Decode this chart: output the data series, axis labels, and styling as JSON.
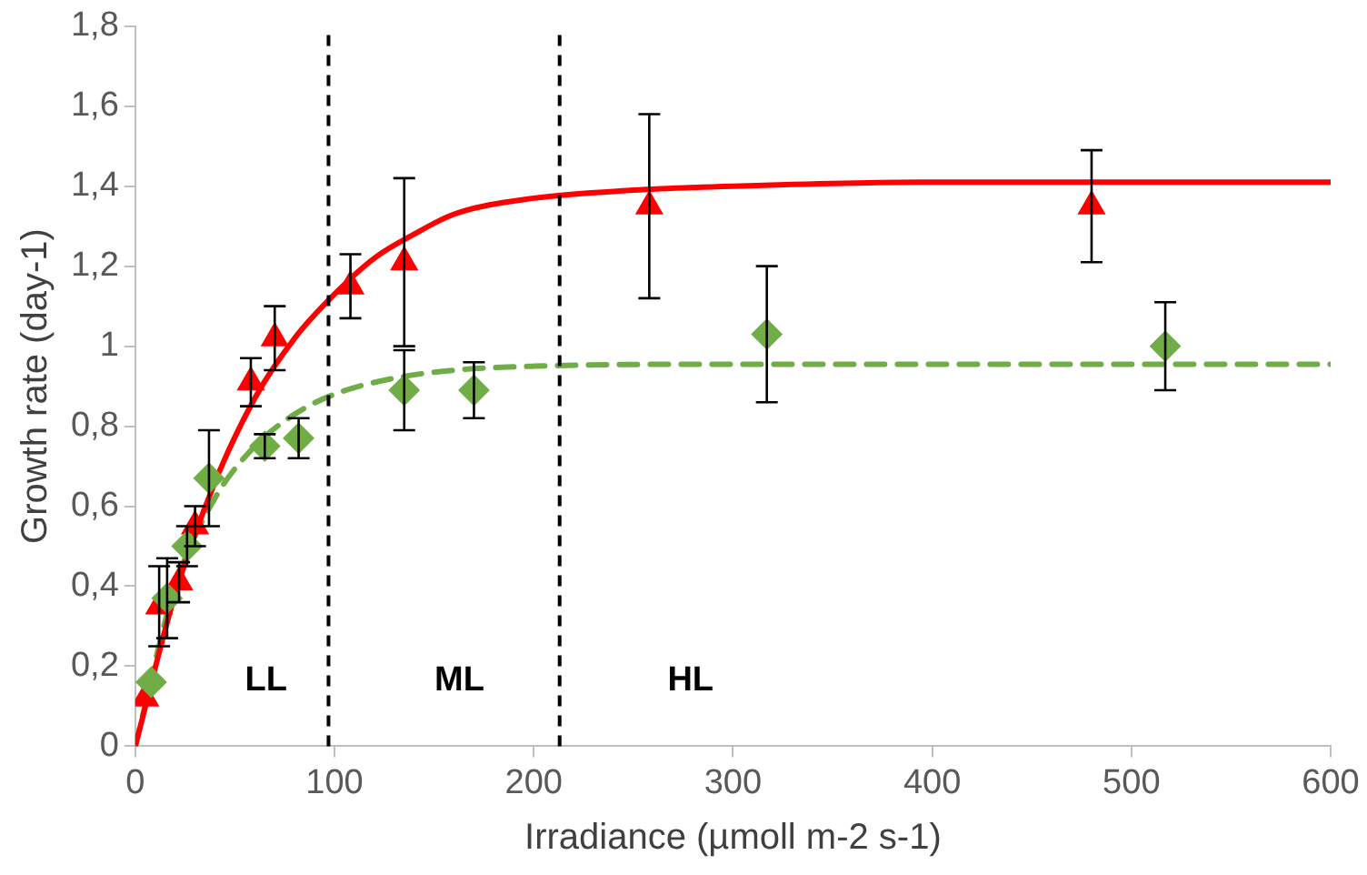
{
  "chart_data": {
    "type": "scatter",
    "xlabel": "Irradiance (µmoll m-2 s-1)",
    "ylabel": "Growth rate (day-1)",
    "xlim": [
      0,
      600
    ],
    "xticks": [
      0,
      100,
      200,
      300,
      400,
      500,
      600
    ],
    "ylim": [
      0,
      1.8
    ],
    "yticks": [
      0,
      {
        "value": 0.2,
        "label": "0,2"
      },
      {
        "value": 0.4,
        "label": "0,4"
      },
      {
        "value": 0.6,
        "label": "0,6"
      },
      {
        "value": 0.8,
        "label": "0,8"
      },
      1,
      {
        "value": 1.2,
        "label": "1,2"
      },
      {
        "value": 1.4,
        "label": "1,4"
      },
      {
        "value": 1.6,
        "label": "1,6"
      },
      {
        "value": 1.8,
        "label": "1,8"
      }
    ],
    "grid": false,
    "legend": false,
    "series": [
      {
        "type": "line",
        "color": "#ff0000",
        "line_style": "solid",
        "marker": "none",
        "x": [
          0,
          20,
          40,
          60,
          80,
          100,
          120,
          140,
          160,
          200,
          250,
          300,
          400,
          600
        ],
        "values": [
          0,
          0.38,
          0.66,
          0.87,
          1.02,
          1.13,
          1.22,
          1.28,
          1.33,
          1.37,
          1.39,
          1.4,
          1.41,
          1.41
        ]
      },
      {
        "type": "line",
        "color": "#70ad47",
        "line_style": "dashed",
        "marker": "none",
        "x": [
          0,
          20,
          40,
          60,
          80,
          100,
          130,
          160,
          200,
          300,
          600
        ],
        "values": [
          0,
          0.4,
          0.62,
          0.75,
          0.83,
          0.88,
          0.92,
          0.94,
          0.95,
          0.955,
          0.955
        ]
      },
      {
        "type": "scatter",
        "color": "#ff0000",
        "marker": "triangle",
        "x": [
          5,
          12,
          22,
          30,
          58,
          70,
          108,
          135,
          258,
          480
        ],
        "values": [
          0.12,
          0.35,
          0.41,
          0.55,
          0.91,
          1.02,
          1.15,
          1.21,
          1.35,
          1.35
        ],
        "errors": [
          null,
          0.1,
          0.05,
          0.05,
          0.06,
          0.08,
          0.08,
          0.21,
          0.23,
          0.14
        ]
      },
      {
        "type": "scatter",
        "color": "#70ad47",
        "marker": "diamond",
        "x": [
          8,
          16,
          26,
          37,
          65,
          82,
          135,
          170,
          317,
          517
        ],
        "values": [
          0.16,
          0.37,
          0.5,
          0.67,
          0.75,
          0.77,
          0.89,
          0.89,
          1.03,
          1.0
        ],
        "errors": [
          null,
          0.1,
          0.05,
          0.12,
          0.03,
          0.05,
          0.1,
          0.07,
          0.17,
          0.11
        ]
      }
    ],
    "ref_lines": [
      {
        "axis": "x",
        "value": 97,
        "color": "#000000",
        "line_style": "dashed"
      },
      {
        "axis": "x",
        "value": 213,
        "color": "#000000",
        "line_style": "dashed"
      }
    ],
    "annotations": [
      "LL",
      "ML",
      "HL"
    ]
  }
}
